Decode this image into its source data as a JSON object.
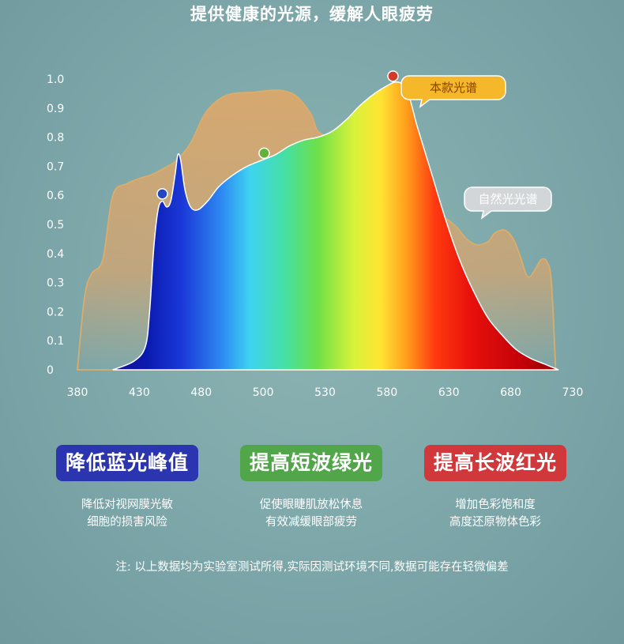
{
  "title": "提供健康的光源，缓解人眼疲劳",
  "chart_data": {
    "type": "area",
    "xlim": [
      380,
      730
    ],
    "ylim": [
      0,
      1.0
    ],
    "x_ticks": [
      380,
      430,
      480,
      500,
      530,
      580,
      630,
      680,
      730
    ],
    "y_ticks": [
      "0",
      "0.1",
      "0.2",
      "0.3",
      "0.4",
      "0.5",
      "0.6",
      "0.7",
      "0.8",
      "0.9",
      "1.0"
    ],
    "grid": false,
    "series": [
      {
        "name": "自然光光谱",
        "color": "#d9a96e",
        "points": [
          [
            380,
            0.0
          ],
          [
            385,
            0.25
          ],
          [
            390,
            0.33
          ],
          [
            398,
            0.38
          ],
          [
            405,
            0.6
          ],
          [
            415,
            0.64
          ],
          [
            425,
            0.66
          ],
          [
            432,
            0.67
          ],
          [
            440,
            0.69
          ],
          [
            450,
            0.72
          ],
          [
            460,
            0.78
          ],
          [
            470,
            0.88
          ],
          [
            480,
            0.93
          ],
          [
            490,
            0.95
          ],
          [
            505,
            0.955
          ],
          [
            515,
            0.96
          ],
          [
            525,
            0.96
          ],
          [
            535,
            0.94
          ],
          [
            545,
            0.88
          ],
          [
            550,
            0.82
          ],
          [
            560,
            0.8
          ],
          [
            570,
            0.79
          ],
          [
            580,
            0.76
          ],
          [
            590,
            0.72
          ],
          [
            600,
            0.66
          ],
          [
            610,
            0.62
          ],
          [
            620,
            0.57
          ],
          [
            630,
            0.52
          ],
          [
            640,
            0.52
          ],
          [
            648,
            0.49
          ],
          [
            655,
            0.45
          ],
          [
            662,
            0.43
          ],
          [
            670,
            0.44
          ],
          [
            675,
            0.47
          ],
          [
            682,
            0.48
          ],
          [
            688,
            0.45
          ],
          [
            693,
            0.39
          ],
          [
            697,
            0.33
          ],
          [
            700,
            0.32
          ],
          [
            704,
            0.35
          ],
          [
            708,
            0.38
          ],
          [
            712,
            0.37
          ],
          [
            715,
            0.3
          ],
          [
            718,
            0.0
          ]
        ]
      },
      {
        "name": "本款光谱",
        "points": [
          [
            405,
            0.0
          ],
          [
            420,
            0.03
          ],
          [
            428,
            0.08
          ],
          [
            431,
            0.2
          ],
          [
            434,
            0.42
          ],
          [
            437,
            0.55
          ],
          [
            440,
            0.58
          ],
          [
            443,
            0.56
          ],
          [
            446,
            0.58
          ],
          [
            449,
            0.67
          ],
          [
            451,
            0.74
          ],
          [
            453,
            0.72
          ],
          [
            456,
            0.62
          ],
          [
            460,
            0.56
          ],
          [
            465,
            0.55
          ],
          [
            472,
            0.58
          ],
          [
            480,
            0.63
          ],
          [
            490,
            0.67
          ],
          [
            500,
            0.7
          ],
          [
            510,
            0.72
          ],
          [
            520,
            0.74
          ],
          [
            530,
            0.77
          ],
          [
            540,
            0.79
          ],
          [
            550,
            0.8
          ],
          [
            560,
            0.82
          ],
          [
            570,
            0.86
          ],
          [
            580,
            0.91
          ],
          [
            590,
            0.95
          ],
          [
            600,
            0.98
          ],
          [
            605,
            0.99
          ],
          [
            610,
            0.98
          ],
          [
            615,
            0.93
          ],
          [
            620,
            0.84
          ],
          [
            630,
            0.68
          ],
          [
            640,
            0.52
          ],
          [
            650,
            0.38
          ],
          [
            660,
            0.27
          ],
          [
            670,
            0.18
          ],
          [
            680,
            0.12
          ],
          [
            690,
            0.07
          ],
          [
            700,
            0.04
          ],
          [
            710,
            0.02
          ],
          [
            720,
            0.0
          ]
        ]
      }
    ],
    "markers": [
      {
        "x": 440,
        "y": 0.605,
        "color": "#2548c2"
      },
      {
        "x": 512,
        "y": 0.745,
        "color": "#62b23a"
      },
      {
        "x": 603,
        "y": 1.01,
        "color": "#d23a2a"
      }
    ],
    "annotations": [
      {
        "text": "本款光谱",
        "target": "本款光谱",
        "position": "top-right"
      },
      {
        "text": "自然光光谱",
        "target": "自然光光谱",
        "position": "right"
      }
    ]
  },
  "features": [
    {
      "label": "降低蓝光峰值",
      "color": "#2b35b0",
      "desc1": "降低对视网膜光敏",
      "desc2": "细胞的损害风险"
    },
    {
      "label": "提高短波绿光",
      "color": "#52a64a",
      "desc1": "促使眼睫肌放松休息",
      "desc2": "有效减缓眼部疲劳"
    },
    {
      "label": "提高长波红光",
      "color": "#d0383b",
      "desc1": "增加色彩饱和度",
      "desc2": "高度还原物体色彩"
    }
  ],
  "note": "注: 以上数据均为实验室测试所得,实际因测试环境不同,数据可能存在轻微偏差"
}
